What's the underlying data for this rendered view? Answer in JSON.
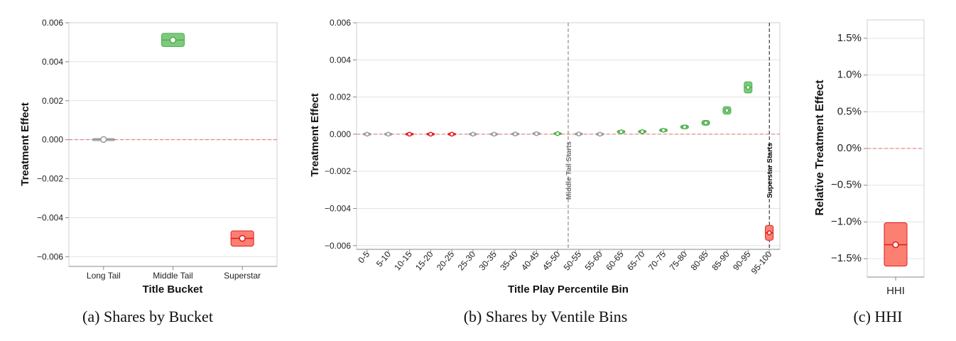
{
  "colors": {
    "positive": "#4daf4a",
    "positive_fill": "#7fc97f",
    "negative": "#e41a1c",
    "negative_fill": "#fb8072",
    "neutral": "#999999",
    "reference_line": "#e8706d",
    "middle_tail_line": "#777777",
    "superstar_line": "#111111"
  },
  "chart_data": [
    {
      "type": "scatter",
      "caption": "(a) Shares by Bucket",
      "xlabel": "Title Bucket",
      "ylabel": "Treatment Effect",
      "ylim": [
        -0.0065,
        0.006
      ],
      "yticks": [
        -0.006,
        -0.004,
        -0.002,
        0.0,
        0.002,
        0.004,
        0.006
      ],
      "ytick_labels": [
        "−0.006",
        "−0.004",
        "−0.002",
        "0.000",
        "0.002",
        "0.004",
        "0.006"
      ],
      "grid": true,
      "reference_line": 0,
      "categories": [
        "Long Tail",
        "Middle Tail",
        "Superstar"
      ],
      "values": [
        1e-05,
        0.00511,
        -0.00506
      ],
      "ci_low": [
        -1e-05,
        0.00478,
        -0.00546
      ],
      "ci_high": [
        2e-05,
        0.00546,
        -0.00468
      ],
      "significance": [
        "neutral",
        "positive",
        "negative"
      ]
    },
    {
      "type": "scatter",
      "caption": "(b) Shares by Ventile Bins",
      "xlabel": "Title Play Percentile Bin",
      "ylabel": "Treatment Effect",
      "ylim": [
        -0.0062,
        0.006
      ],
      "yticks": [
        -0.006,
        -0.004,
        -0.002,
        0.0,
        0.002,
        0.004,
        0.006
      ],
      "ytick_labels": [
        "−0.006",
        "−0.004",
        "−0.002",
        "0.000",
        "0.002",
        "0.004",
        "0.006"
      ],
      "grid": true,
      "reference_line": 0,
      "categories": [
        "0-5",
        "5-10",
        "10-15",
        "15-20",
        "20-25",
        "25-30",
        "30-35",
        "35-40",
        "40-45",
        "45-50",
        "50-55",
        "55-60",
        "60-65",
        "65-70",
        "70-75",
        "75-80",
        "80-85",
        "85-90",
        "90-95",
        "95-100"
      ],
      "values": [
        0.0,
        0.0,
        0.0,
        0.0,
        0.0,
        0.0,
        0.0,
        1e-05,
        3e-05,
        3e-05,
        1e-05,
        0.0,
        0.00013,
        0.00014,
        0.00021,
        0.00039,
        0.00061,
        0.00128,
        0.00252,
        -0.00531
      ],
      "ci_low": [
        -2e-05,
        -2e-05,
        -4e-05,
        -4e-05,
        -4e-05,
        -2e-05,
        -2e-05,
        -2e-05,
        -2e-05,
        -1e-05,
        -3e-05,
        -3e-05,
        6e-05,
        7e-05,
        0.00013,
        0.00029,
        0.00048,
        0.00108,
        0.00222,
        -0.00571
      ],
      "ci_high": [
        2e-05,
        2e-05,
        4e-05,
        4e-05,
        4e-05,
        2e-05,
        2e-05,
        4e-05,
        8e-05,
        7e-05,
        5e-05,
        3e-05,
        0.0002,
        0.00021,
        0.00029,
        0.00049,
        0.00074,
        0.00148,
        0.00282,
        -0.00491
      ],
      "significance": [
        "neutral",
        "neutral",
        "negative",
        "negative",
        "negative",
        "neutral",
        "neutral",
        "neutral",
        "neutral",
        "positive",
        "neutral",
        "neutral",
        "positive",
        "positive",
        "positive",
        "positive",
        "positive",
        "positive",
        "positive",
        "negative"
      ],
      "annotations": [
        {
          "label": "Middle Tail Starts",
          "after_category": "45-50"
        },
        {
          "label": "Superstar Starts",
          "after_category": "90-95"
        }
      ]
    },
    {
      "type": "scatter",
      "caption": "(c) HHI",
      "xlabel": "",
      "ylabel": "Relative Treatment Effect",
      "ylim": [
        -1.75,
        1.75
      ],
      "yticks": [
        -1.5,
        -1.0,
        -0.5,
        0.0,
        0.5,
        1.0,
        1.5
      ],
      "ytick_labels": [
        "−1.5%",
        "−1.0%",
        "−0.5%",
        "0.0%",
        "0.5%",
        "1.0%",
        "1.5%"
      ],
      "grid": true,
      "reference_line": 0,
      "categories": [
        "HHI"
      ],
      "values": [
        -1.31
      ],
      "ci_low": [
        -1.6
      ],
      "ci_high": [
        -1.01
      ],
      "significance": [
        "negative"
      ]
    }
  ]
}
